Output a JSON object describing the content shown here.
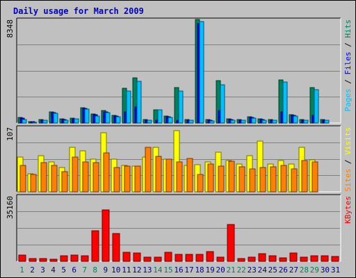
{
  "title": "Daily usage for March 2009",
  "colors": {
    "hits": "#00805c",
    "files": "#0000ff",
    "pages": "#00c0ff",
    "visits": "#ffff00",
    "sites": "#ff8000",
    "kbytes": "#ff0000",
    "weekend_label": "#00805c",
    "weekday_label": "#000080"
  },
  "chart_data": [
    {
      "type": "bar",
      "title": "",
      "ymax_label": "8348",
      "legend": [
        {
          "name": "Pages",
          "color": "#00c0ff"
        },
        {
          "name": "Files",
          "color": "#0000ff"
        },
        {
          "name": "Hits",
          "color": "#00805c"
        }
      ],
      "categories": [
        "1",
        "2",
        "3",
        "4",
        "5",
        "6",
        "7",
        "8",
        "9",
        "10",
        "11",
        "12",
        "13",
        "14",
        "15",
        "16",
        "17",
        "18",
        "19",
        "20",
        "21",
        "22",
        "23",
        "24",
        "25",
        "26",
        "27",
        "28",
        "29",
        "30",
        "31"
      ],
      "series": [
        {
          "name": "Hits",
          "values": [
            460,
            120,
            280,
            880,
            360,
            400,
            1260,
            720,
            1000,
            630,
            2780,
            3650,
            270,
            1070,
            580,
            2840,
            280,
            8348,
            270,
            3400,
            320,
            270,
            480,
            360,
            270,
            3500,
            670,
            280,
            2880,
            270,
            0
          ]
        },
        {
          "name": "Files",
          "values": [
            380,
            100,
            230,
            820,
            300,
            350,
            1150,
            650,
            920,
            560,
            900,
            1300,
            220,
            200,
            520,
            200,
            230,
            8000,
            230,
            1000,
            270,
            220,
            460,
            300,
            230,
            900,
            620,
            230,
            600,
            230,
            0
          ]
        },
        {
          "name": "Pages",
          "values": [
            300,
            80,
            200,
            800,
            250,
            320,
            1100,
            550,
            860,
            500,
            2600,
            3350,
            200,
            1050,
            470,
            2600,
            220,
            8200,
            180,
            3100,
            250,
            200,
            400,
            250,
            200,
            3300,
            560,
            220,
            2700,
            200,
            0
          ]
        }
      ]
    },
    {
      "type": "bar",
      "title": "",
      "ymax_label": "107",
      "legend": [
        {
          "name": "Sites",
          "color": "#ff8000"
        },
        {
          "name": "Visits",
          "color": "#ffff00"
        }
      ],
      "categories": [
        "1",
        "2",
        "3",
        "4",
        "5",
        "6",
        "7",
        "8",
        "9",
        "10",
        "11",
        "12",
        "13",
        "14",
        "15",
        "16",
        "17",
        "18",
        "19",
        "20",
        "21",
        "22",
        "23",
        "24",
        "25",
        "26",
        "27",
        "28",
        "29",
        "30",
        "31"
      ],
      "series": [
        {
          "name": "Visits",
          "values": [
            58,
            30,
            60,
            50,
            40,
            74,
            68,
            54,
            98,
            54,
            44,
            43,
            58,
            74,
            54,
            101,
            44,
            45,
            50,
            66,
            52,
            46,
            60,
            84,
            46,
            52,
            46,
            74,
            53,
            0,
            0
          ]
        },
        {
          "name": "Sites",
          "values": [
            44,
            29,
            48,
            44,
            33,
            58,
            50,
            48,
            64,
            40,
            43,
            43,
            74,
            59,
            54,
            49,
            55,
            29,
            46,
            42,
            51,
            41,
            38,
            40,
            41,
            44,
            38,
            52,
            50,
            0,
            0
          ]
        }
      ]
    },
    {
      "type": "bar",
      "title": "",
      "ymax_label": "35160",
      "legend": [
        {
          "name": "KBytes",
          "color": "#ff0000"
        }
      ],
      "categories": [
        "1",
        "2",
        "3",
        "4",
        "5",
        "6",
        "7",
        "8",
        "9",
        "10",
        "11",
        "12",
        "13",
        "14",
        "15",
        "16",
        "17",
        "18",
        "19",
        "20",
        "21",
        "22",
        "23",
        "24",
        "25",
        "26",
        "27",
        "28",
        "29",
        "30",
        "31"
      ],
      "series": [
        {
          "name": "KBytes",
          "values": [
            3200,
            1500,
            1600,
            1200,
            3000,
            3400,
            3000,
            16500,
            27500,
            15000,
            4800,
            4500,
            2400,
            2300,
            4700,
            3600,
            3600,
            3800,
            5200,
            2200,
            19800,
            1600,
            2100,
            4100,
            3100,
            1900,
            4400,
            2400,
            3100,
            3100,
            2800
          ]
        }
      ]
    }
  ],
  "weekend_days": [
    1,
    7,
    8,
    14,
    15,
    21,
    22,
    28,
    29
  ]
}
